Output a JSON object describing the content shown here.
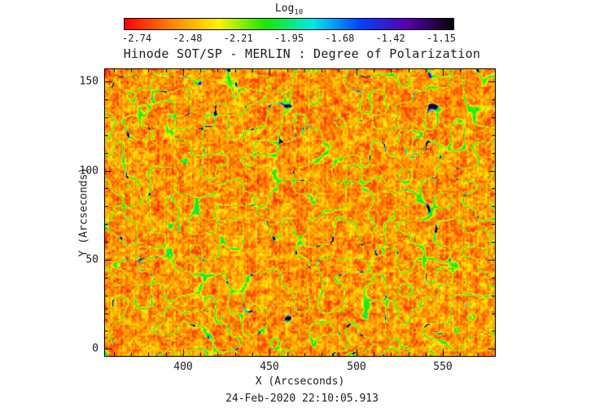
{
  "title": "Hinode SOT/SP - MERLIN : Degree of Polarization",
  "timestamp": "24-Feb-2020 22:10:05.913",
  "colorbar": {
    "label_base": "Log",
    "label_subscript": "10"
  },
  "chart_data": {
    "type": "heatmap",
    "title": "Hinode SOT/SP - MERLIN : Degree of Polarization",
    "xlabel": "X (Arcseconds)",
    "ylabel": "Y (Arcseconds)",
    "xlim": [
      355,
      580
    ],
    "ylim": [
      -4,
      157
    ],
    "x_ticks": [
      400,
      450,
      500,
      550
    ],
    "y_ticks": [
      0,
      50,
      100,
      150
    ],
    "x_minor_step": 10,
    "y_minor_step": 10,
    "grid": false,
    "legend": "none",
    "colorbar_label": "Log10",
    "colorbar_ticks": [
      -2.74,
      -2.48,
      -2.21,
      -1.95,
      -1.68,
      -1.42,
      -1.15
    ],
    "colorbar_range": [
      -2.82,
      -1.07
    ],
    "colormap": "reversed-rainbow (red -> orange -> yellow -> green -> cyan -> blue -> violet -> black)",
    "colormap_stops": [
      "#ff0000",
      "#ff8400",
      "#fff200",
      "#1ae800",
      "#00e8e8",
      "#0044ff",
      "#5a00b0",
      "#050008"
    ],
    "value_summary": "Quiet-Sun log10 degree-of-polarization map: granular background near -2.7 to -2.4 (red/orange), lace-like network lanes ~ -2.2 to -1.9 (yellow/green), sparse strong-polarization patches ~ -1.7 to -1.2 (cyan/blue/black)"
  },
  "render": {
    "seed": 7
  }
}
